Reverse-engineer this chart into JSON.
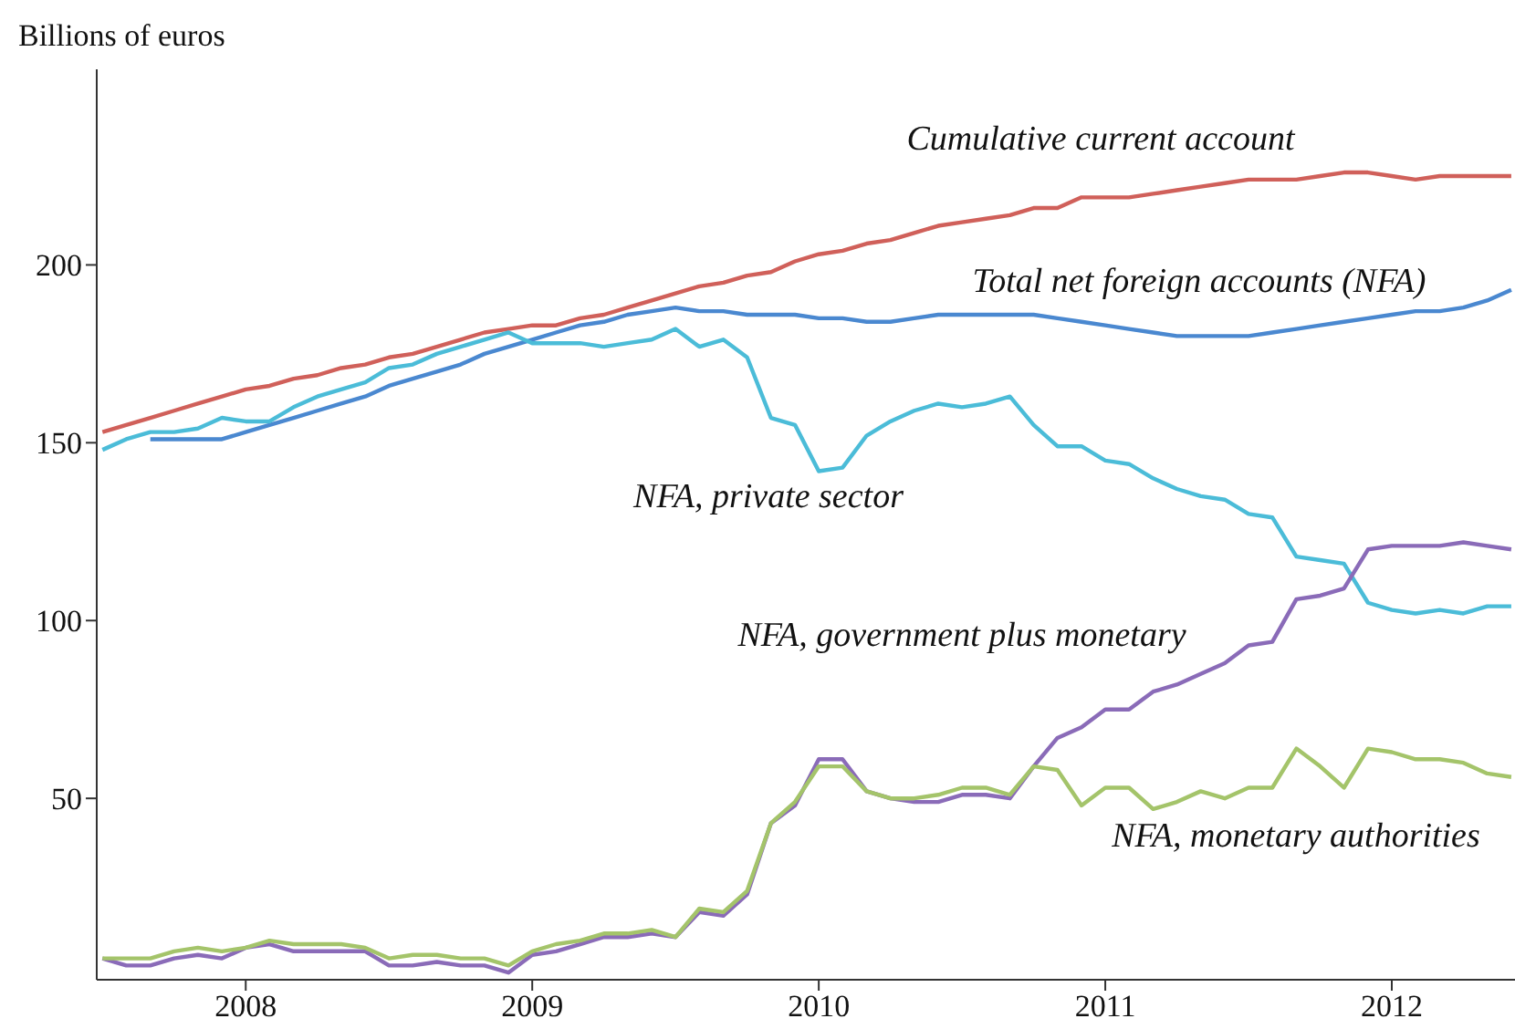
{
  "chart_data": {
    "type": "line",
    "ylabel": "Billions of euros",
    "x": [
      2007.5,
      2007.583,
      2007.667,
      2007.75,
      2007.833,
      2007.917,
      2008,
      2008.083,
      2008.167,
      2008.25,
      2008.333,
      2008.417,
      2008.5,
      2008.583,
      2008.667,
      2008.75,
      2008.833,
      2008.917,
      2009,
      2009.083,
      2009.167,
      2009.25,
      2009.333,
      2009.417,
      2009.5,
      2009.583,
      2009.667,
      2009.75,
      2009.833,
      2009.917,
      2010,
      2010.083,
      2010.167,
      2010.25,
      2010.333,
      2010.417,
      2010.5,
      2010.583,
      2010.667,
      2010.75,
      2010.833,
      2010.917,
      2011,
      2011.083,
      2011.167,
      2011.25,
      2011.333,
      2011.417,
      2011.5,
      2011.583,
      2011.667,
      2011.75,
      2011.833,
      2011.917,
      2012,
      2012.083,
      2012.167,
      2012.25,
      2012.333,
      2012.417
    ],
    "series": [
      {
        "name": "Cumulative current account",
        "color": "#d0605a",
        "values": [
          153,
          155,
          157,
          159,
          161,
          163,
          165,
          166,
          168,
          169,
          171,
          172,
          174,
          175,
          177,
          179,
          181,
          182,
          183,
          183,
          185,
          186,
          188,
          190,
          192,
          194,
          195,
          197,
          198,
          201,
          203,
          204,
          206,
          207,
          209,
          211,
          212,
          213,
          214,
          216,
          216,
          219,
          219,
          219,
          220,
          221,
          222,
          223,
          224,
          224,
          224,
          225,
          226,
          226,
          225,
          224,
          225,
          225,
          225,
          225
        ]
      },
      {
        "name": "Total net foreign accounts (NFA)",
        "color": "#4a88d0",
        "values": [
          null,
          null,
          151,
          151,
          151,
          151,
          153,
          155,
          157,
          159,
          161,
          163,
          166,
          168,
          170,
          172,
          175,
          177,
          179,
          181,
          183,
          184,
          186,
          187,
          188,
          187,
          187,
          186,
          186,
          186,
          185,
          185,
          184,
          184,
          185,
          186,
          186,
          186,
          186,
          186,
          185,
          184,
          183,
          182,
          181,
          180,
          180,
          180,
          180,
          181,
          182,
          183,
          184,
          185,
          186,
          187,
          187,
          188,
          190,
          193
        ]
      },
      {
        "name": "NFA, private sector",
        "color": "#4bbcd8",
        "values": [
          148,
          151,
          153,
          153,
          154,
          157,
          156,
          156,
          160,
          163,
          165,
          167,
          171,
          172,
          175,
          177,
          179,
          181,
          178,
          178,
          178,
          177,
          178,
          179,
          182,
          177,
          179,
          174,
          157,
          155,
          142,
          143,
          152,
          156,
          159,
          161,
          160,
          161,
          163,
          155,
          149,
          149,
          145,
          144,
          140,
          137,
          135,
          134,
          130,
          129,
          118,
          117,
          116,
          105,
          103,
          102,
          103,
          102,
          104,
          104
        ]
      },
      {
        "name": "NFA, government plus monetary",
        "color": "#8a6bb8",
        "values": [
          5,
          3,
          3,
          5,
          6,
          5,
          8,
          9,
          7,
          7,
          7,
          7,
          3,
          3,
          4,
          3,
          3,
          1,
          6,
          7,
          9,
          11,
          11,
          12,
          11,
          18,
          17,
          23,
          43,
          48,
          61,
          61,
          52,
          50,
          49,
          49,
          51,
          51,
          50,
          59,
          67,
          70,
          75,
          75,
          80,
          82,
          85,
          88,
          93,
          94,
          106,
          107,
          109,
          120,
          121,
          121,
          121,
          122,
          121,
          120
        ]
      },
      {
        "name": "NFA, monetary authorities",
        "color": "#a4c46a",
        "values": [
          5,
          5,
          5,
          7,
          8,
          7,
          8,
          10,
          9,
          9,
          9,
          8,
          5,
          6,
          6,
          5,
          5,
          3,
          7,
          9,
          10,
          12,
          12,
          13,
          11,
          19,
          18,
          24,
          43,
          49,
          59,
          59,
          52,
          50,
          50,
          51,
          53,
          53,
          51,
          59,
          58,
          48,
          53,
          53,
          47,
          49,
          52,
          50,
          53,
          53,
          64,
          59,
          53,
          64,
          63,
          61,
          61,
          60,
          57,
          56
        ]
      }
    ],
    "xlim": [
      2007.48,
      2012.43
    ],
    "xticks": [
      2008,
      2009,
      2010,
      2011,
      2012
    ],
    "ylim": [
      -1,
      255
    ],
    "yticks": [
      50,
      100,
      150,
      200
    ],
    "grid": false,
    "legend": false
  }
}
